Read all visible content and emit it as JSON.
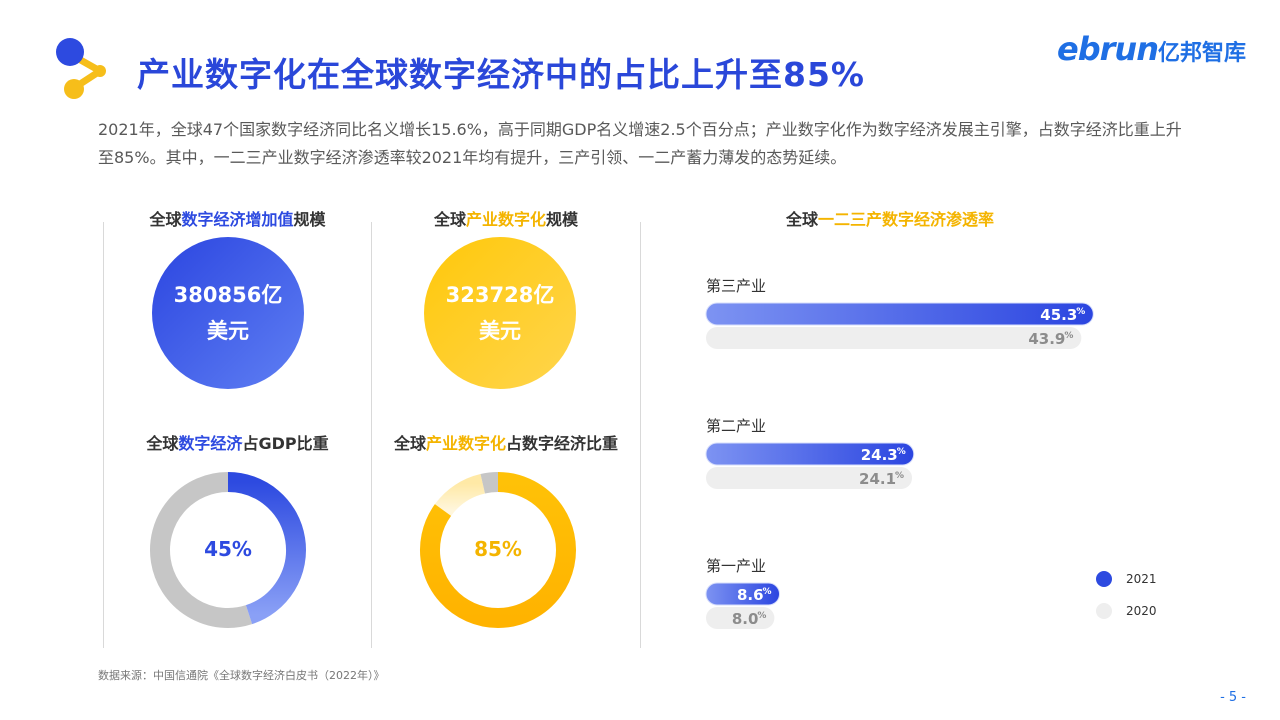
{
  "header": {
    "title": "产业数字化在全球数字经济中的占比上升至85%",
    "brand_en": "ebrun",
    "brand_cn": "亿邦智库"
  },
  "summary": "2021年，全球47个国家数字经济同比名义增长15.6%，高于同期GDP名义增速2.5个百分点；产业数字化作为数字经济发展主引擎，占数字经济比重上升至85%。其中，一二三产业数字经济渗透率较2021年均有提升，三产引领、一二产蓄力薄发的态势延续。",
  "panels": {
    "p1": {
      "pre": "全球",
      "hl": "数字经济增加值",
      "post": "规模",
      "value_line1": "380856亿",
      "value_line2": "美元"
    },
    "p2": {
      "pre": "全球",
      "hl": "产业数字化",
      "post": "规模",
      "value_line1": "323728亿",
      "value_line2": "美元"
    },
    "p3": {
      "pre": "全球",
      "hl": "数字经济",
      "post": "占GDP比重",
      "label": "45%"
    },
    "p4": {
      "pre": "全球",
      "hl": "产业数字化",
      "post": "占数字经济比重",
      "label": "85%"
    },
    "p5": {
      "pre": "全球",
      "hl": "一二三产数字经济渗透率",
      "post": ""
    }
  },
  "colors": {
    "blue": "#2d4ae0",
    "blue_light": "#8aa0f6",
    "gold": "#ffc107",
    "gold_light": "#fff0c2",
    "grey_ring": "#c6c6c6",
    "grey_bar": "#eeeeee"
  },
  "chart_data": [
    {
      "type": "pie",
      "title": "全球数字经济占GDP比重",
      "values": [
        45,
        55
      ],
      "label": "45%"
    },
    {
      "type": "pie",
      "title": "全球产业数字化占数字经济比重",
      "values": [
        85,
        15
      ],
      "label": "85%"
    },
    {
      "type": "bar",
      "orientation": "horizontal",
      "title": "全球一二三产数字经济渗透率",
      "categories": [
        "第三产业",
        "第二产业",
        "第一产业"
      ],
      "series": [
        {
          "name": "2021",
          "values": [
            45.3,
            24.3,
            8.6
          ]
        },
        {
          "name": "2020",
          "values": [
            43.9,
            24.1,
            8.0
          ]
        }
      ],
      "unit": "%",
      "legend": "bottom-right"
    }
  ],
  "legend": {
    "items": [
      "2021",
      "2020"
    ]
  },
  "source": "数据来源：中国信通院《全球数字经济白皮书（2022年）》",
  "page_number": "- 5 -"
}
